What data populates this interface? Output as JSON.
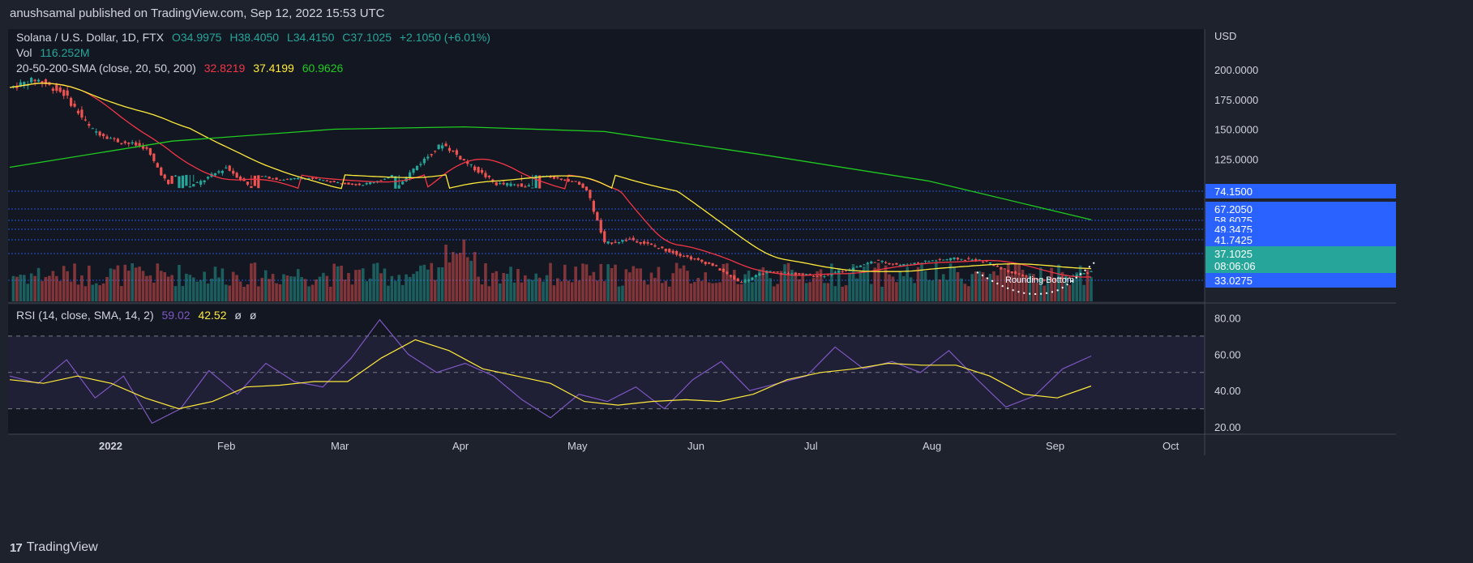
{
  "header": {
    "publisher": "anushsamal published on TradingView.com, Sep 12, 2022 15:53 UTC"
  },
  "legend": {
    "symbol": "Solana / U.S. Dollar, 1D, FTX",
    "o": "O34.9975",
    "h": "H38.4050",
    "l": "L34.4150",
    "c": "C37.1025",
    "change": "+2.1050 (+6.01%)",
    "vol_label": "Vol",
    "vol_value": "116.252M",
    "sma_label": "20-50-200-SMA (close, 20, 50, 200)",
    "sma20": "32.8219",
    "sma50": "37.4199",
    "sma200": "60.9626",
    "rsi_label": "RSI (14, close, SMA, 14, 2)",
    "rsi_value": "59.02",
    "rsi_sma": "42.52",
    "rsi_na1": "ø",
    "rsi_na2": "ø"
  },
  "footer": {
    "brand": "TradingView"
  },
  "colors": {
    "up": "#26a69a",
    "down": "#ef5350",
    "sma20": "#f23645",
    "sma50": "#ffeb3b",
    "sma200": "#1fcc1f",
    "rsi": "#7e57c2",
    "rsi_sma": "#ffeb3b",
    "axis_blue": "#2962ff"
  },
  "chart_data": {
    "type": "candlestick",
    "currency": "USD",
    "price_axis_ticks": [
      "200.0000",
      "175.0000",
      "150.0000",
      "125.0000"
    ],
    "levels": [
      {
        "value": "74.1500",
        "style": "blue-box"
      },
      {
        "value": "67.2050",
        "style": "blue-box"
      },
      {
        "value": "58.6075",
        "style": "blue-box"
      },
      {
        "value": "49.3475",
        "style": "blue-box"
      },
      {
        "value": "41.7425",
        "style": "blue-box"
      },
      {
        "value": "37.1025",
        "style": "green-box"
      },
      {
        "value": "08:06:06",
        "style": "green-box"
      },
      {
        "value": "33.0275",
        "style": "blue-box"
      }
    ],
    "months": [
      "2022",
      "Feb",
      "Mar",
      "Apr",
      "May",
      "Jun",
      "Jul",
      "Aug",
      "Sep",
      "Oct"
    ],
    "rsi_axis_ticks": [
      "80.00",
      "60.00",
      "40.00",
      "20.00"
    ],
    "annotation": "Rounding Bottom",
    "price_path": [
      [
        "2021-12-12",
        200,
        185
      ],
      [
        "2021-12-20",
        185,
        192
      ],
      [
        "2021-12-27",
        192,
        180
      ],
      [
        "2022-01-05",
        178,
        150
      ],
      [
        "2022-01-12",
        148,
        140
      ],
      [
        "2022-01-18",
        142,
        135
      ],
      [
        "2022-01-24",
        110,
        98
      ],
      [
        "2022-01-31",
        98,
        105
      ],
      [
        "2022-02-07",
        110,
        118
      ],
      [
        "2022-02-14",
        112,
        100
      ],
      [
        "2022-02-21",
        98,
        92
      ],
      [
        "2022-02-28",
        92,
        95
      ],
      [
        "2022-03-07",
        96,
        88
      ],
      [
        "2022-03-14",
        86,
        84
      ],
      [
        "2022-03-21",
        88,
        95
      ],
      [
        "2022-03-28",
        100,
        118
      ],
      [
        "2022-04-02",
        128,
        138
      ],
      [
        "2022-04-05",
        132,
        120
      ],
      [
        "2022-04-12",
        110,
        104
      ],
      [
        "2022-04-20",
        104,
        103
      ],
      [
        "2022-04-27",
        100,
        96
      ],
      [
        "2022-05-04",
        92,
        88
      ],
      [
        "2022-05-09",
        72,
        50
      ],
      [
        "2022-05-16",
        54,
        52
      ],
      [
        "2022-05-23",
        50,
        48
      ],
      [
        "2022-05-30",
        46,
        44
      ],
      [
        "2022-06-06",
        42,
        40
      ],
      [
        "2022-06-13",
        38,
        32
      ],
      [
        "2022-06-20",
        34,
        37
      ],
      [
        "2022-06-27",
        38,
        36
      ],
      [
        "2022-07-04",
        36,
        35
      ],
      [
        "2022-07-11",
        36,
        38
      ],
      [
        "2022-07-18",
        40,
        42
      ],
      [
        "2022-07-25",
        41,
        40
      ],
      [
        "2022-08-01",
        40,
        42
      ],
      [
        "2022-08-08",
        42,
        43
      ],
      [
        "2022-08-15",
        45,
        42
      ],
      [
        "2022-08-22",
        40,
        37
      ],
      [
        "2022-08-29",
        36,
        33
      ],
      [
        "2022-09-05",
        33,
        34
      ],
      [
        "2022-09-12",
        35,
        37.1
      ]
    ],
    "sma200_points": [
      [
        0,
        118
      ],
      [
        0.15,
        140
      ],
      [
        0.3,
        150
      ],
      [
        0.42,
        152
      ],
      [
        0.55,
        148
      ],
      [
        0.7,
        128
      ],
      [
        0.85,
        90
      ],
      [
        1,
        60.96
      ]
    ],
    "rsi_series_sample": [
      48,
      44,
      57,
      36,
      48,
      22,
      30,
      51,
      38,
      55,
      45,
      42,
      58,
      79,
      60,
      50,
      55,
      48,
      35,
      25,
      38,
      34,
      42,
      30,
      46,
      56,
      40,
      44,
      48,
      64,
      52,
      56,
      50,
      62,
      46,
      31,
      37,
      52,
      59.02
    ],
    "rsi_sma_sample": [
      46,
      44,
      48,
      44,
      36,
      30,
      34,
      42,
      43,
      45,
      45,
      58,
      68,
      62,
      52,
      48,
      44,
      34,
      32,
      34,
      35,
      34,
      38,
      46,
      50,
      52,
      55,
      54,
      54,
      48,
      38,
      36,
      42.52
    ]
  }
}
